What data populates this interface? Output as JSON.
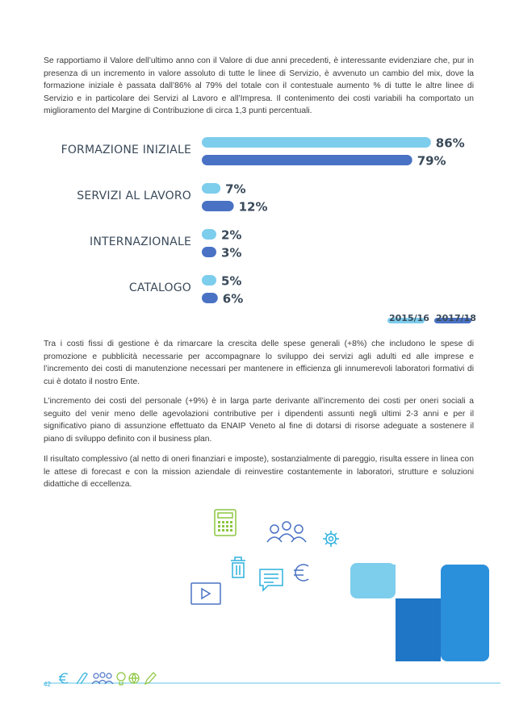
{
  "page": {
    "number": "42",
    "paragraphs": [
      "Se rapportiamo il Valore dell’ultimo anno con il Valore di due anni precedenti, è interessante evidenziare che, pur in presenza di un incremento in valore assoluto di tutte le linee di Servizio, è avvenuto un cambio del mix, dove la formazione iniziale è passata dall’86% al 79% del totale con il contestuale aumento % di tutte le altre linee di Servizio e in particolare dei Servizi al Lavoro e all’Impresa. Il contenimento dei costi variabili ha comportato un miglioramento del Margine di Contribuzione di circa 1,3 punti percentuali.",
      "Tra i costi fissi di gestione è da rimarcare la crescita delle spese generali (+8%) che includono le spese di promozione e pubblicità necessarie per accompagnare lo sviluppo dei servizi agli adulti ed alle imprese e l’incremento dei costi di manutenzione necessari per mantenere in efficienza gli innumerevoli laboratori formativi di cui è dotato il nostro Ente.",
      "L’incremento dei costi del personale (+9%) è in larga parte derivante all’incremento dei costi per oneri sociali a seguito del venir meno delle agevolazioni contributive per i dipendenti assunti negli ultimi 2-3 anni e per il significativo piano di assunzione effettuato da ENAIP Veneto al fine di dotarsi di risorse adeguate a sostenere il piano di sviluppo definito con il business plan.",
      "Il risultato complessivo (al netto di oneri finanziari e imposte), sostanzialmente di pareggio, risulta essere in linea con le attese di forecast e con la mission aziendale di reinvestire costantemente in laboratori, strutture e soluzioni didattiche di eccellenza."
    ]
  },
  "chart_data": {
    "type": "bar",
    "orientation": "horizontal",
    "categories": [
      "FORMAZIONE INIZIALE",
      "SERVIZI AL LAVORO",
      "INTERNAZIONALE",
      "CATALOGO"
    ],
    "series": [
      {
        "name": "2015/16",
        "values": [
          86,
          7,
          2,
          5
        ],
        "labels": [
          "86%",
          "7%",
          "2%",
          "5%"
        ],
        "color": "#7dcdec"
      },
      {
        "name": "2017/18",
        "values": [
          79,
          12,
          3,
          6
        ],
        "labels": [
          "79%",
          "12%",
          "3%",
          "6%"
        ],
        "color": "#4a72c4"
      }
    ],
    "unit": "%",
    "legend": "bottom-right",
    "grid": false
  },
  "colors": {
    "light_blue": "#7dcdec",
    "dark_blue": "#4a72c4",
    "deco_dark": "#1f76c6",
    "footer_line": "#2eb0de"
  },
  "icons": [
    "calculator-icon",
    "people-group-icon",
    "gear-icon",
    "trash-icon",
    "chat-icon",
    "euro-icon",
    "play-icon"
  ],
  "footer_icons": [
    "euro-icon",
    "paperclip-icon",
    "people-icon",
    "lightbulb-icon",
    "globe-icon",
    "pencil-icon"
  ]
}
